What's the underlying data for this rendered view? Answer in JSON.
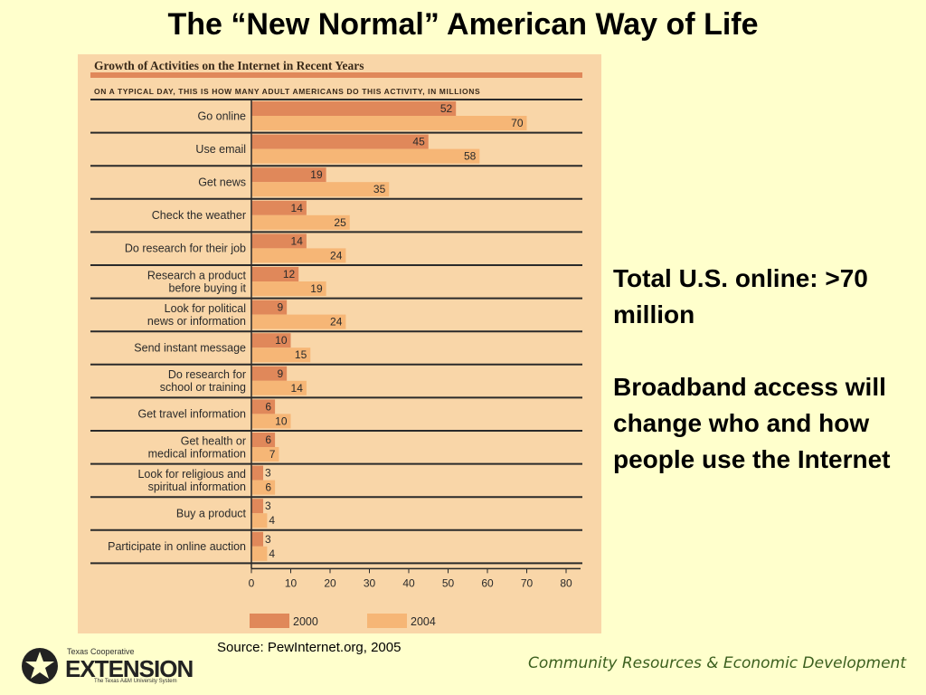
{
  "title": "The “New Normal” American Way of Life",
  "side_text": {
    "line1": "Total U.S. online: >70 million",
    "line2": "Broadband access will change who and how people use the Internet"
  },
  "source": "Source: PewInternet.org, 2005",
  "footer_right": "Community Resources & Economic Development",
  "logo": {
    "small_top": "Texas Cooperative",
    "big": "EXTENSION",
    "small_bottom": "The Texas A&M University System"
  },
  "colors": {
    "background": "#ffffcc",
    "panel": "#f9d6a8",
    "bar_2000": "#e0885a",
    "bar_2004": "#f6b676"
  },
  "chart_data": {
    "type": "bar",
    "orientation": "horizontal",
    "title": "Growth of Activities on the Internet in Recent Years",
    "subtitle": "ON A TYPICAL DAY, THIS IS HOW MANY ADULT AMERICANS DO THIS ACTIVITY, IN MILLIONS",
    "categories": [
      [
        "Go online"
      ],
      [
        "Use email"
      ],
      [
        "Get news"
      ],
      [
        "Check the weather"
      ],
      [
        "Do research for their job"
      ],
      [
        "Research a product",
        "before buying it"
      ],
      [
        "Look for political",
        "news or information"
      ],
      [
        "Send instant message"
      ],
      [
        "Do research for",
        "school or training"
      ],
      [
        "Get travel information"
      ],
      [
        "Get health or",
        "medical information"
      ],
      [
        "Look for religious and",
        "spiritual information"
      ],
      [
        "Buy a product"
      ],
      [
        "Participate in online auction"
      ]
    ],
    "series": [
      {
        "name": "2000",
        "values": [
          52,
          45,
          19,
          14,
          14,
          12,
          9,
          10,
          9,
          6,
          6,
          3,
          3,
          3
        ]
      },
      {
        "name": "2004",
        "values": [
          70,
          58,
          35,
          25,
          24,
          19,
          24,
          15,
          14,
          10,
          7,
          6,
          4,
          4
        ]
      }
    ],
    "xlim": [
      0,
      80
    ],
    "xticks": [
      0,
      10,
      20,
      30,
      40,
      50,
      60,
      70,
      80
    ],
    "legend_position": "bottom"
  }
}
